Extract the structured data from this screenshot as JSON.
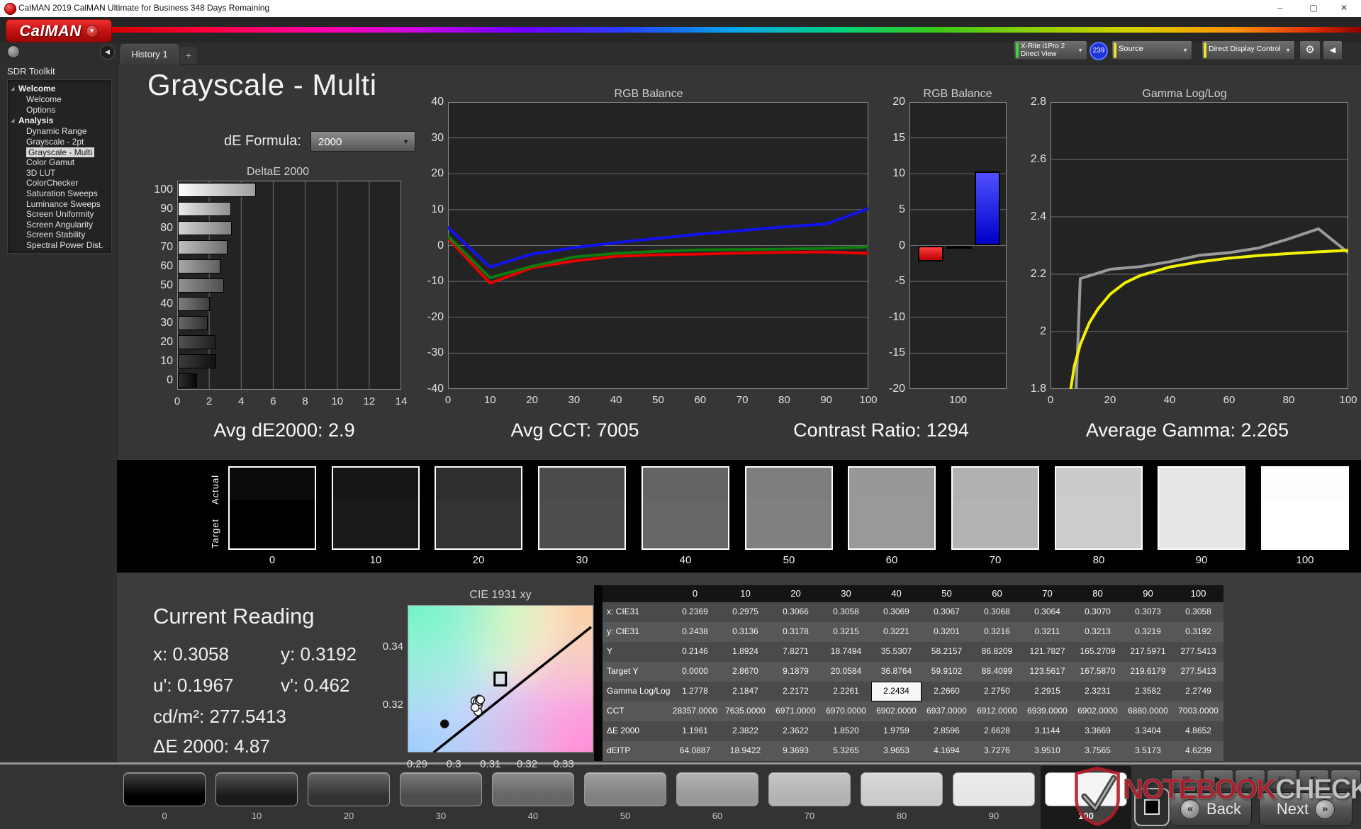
{
  "window": {
    "title": "CalMAN 2019 CalMAN Ultimate for Business 348 Days Remaining",
    "logo_text": "CalMAN",
    "tab": "History 1",
    "new_tab": "+"
  },
  "icons": {
    "chevron_down": "▼",
    "gear": "⚙",
    "collapse_left": "◀",
    "expander": "◢",
    "minimize": "–",
    "maximize": "▢",
    "close": "✕",
    "back_chevrons": "«",
    "next_chevrons": "»",
    "mini": [
      "▣",
      "▶",
      "■",
      "▤",
      "◧",
      "≡"
    ]
  },
  "toolbar": {
    "meter": {
      "line1": "X-Rite i1Pro 2",
      "line2": "Direct View",
      "badge": "239",
      "accent": "#3fd435"
    },
    "source": {
      "label": "Source",
      "accent": "#e8e431"
    },
    "display": {
      "label": "Direct Display Control",
      "accent": "#e8e431"
    }
  },
  "sidebar": {
    "title": "SDR Toolkit",
    "selected": "Grayscale - Multi",
    "sections": [
      {
        "label": "Welcome",
        "items": [
          "Welcome",
          "Options"
        ]
      },
      {
        "label": "Analysis",
        "items": [
          "Dynamic Range",
          "Grayscale - 2pt",
          "Grayscale - Multi",
          "Color Gamut",
          "3D LUT",
          "ColorChecker",
          "Saturation Sweeps",
          "Luminance Sweeps",
          "Screen Uniformity",
          "Screen Angularity",
          "Screen Stability",
          "Spectral Power Dist."
        ]
      }
    ]
  },
  "page": {
    "title": "Grayscale - Multi",
    "de_formula_label": "dE Formula:",
    "de_formula_value": "2000"
  },
  "stats": [
    "Avg dE2000: 2.9",
    "Avg CCT: 7005",
    "Contrast Ratio: 1294",
    "Average Gamma: 2.265"
  ],
  "chart_data": [
    {
      "type": "bar",
      "title": "DeltaE 2000",
      "orientation": "horizontal",
      "categories": [
        "100",
        "90",
        "80",
        "70",
        "60",
        "50",
        "40",
        "30",
        "20",
        "10",
        "0"
      ],
      "values": [
        4.8652,
        3.3404,
        3.3669,
        3.1144,
        2.6628,
        2.8596,
        1.9759,
        1.852,
        2.3622,
        2.3822,
        1.1961
      ],
      "bar_hex": [
        "#ffffff",
        "#e6e6e6",
        "#cccccc",
        "#b3b3b3",
        "#999999",
        "#808080",
        "#666666",
        "#4d4d4d",
        "#333333",
        "#1a1a1a",
        "#0a0a0a"
      ],
      "xlim": [
        0,
        14
      ],
      "xticks": [
        "0",
        "2",
        "4",
        "6",
        "8",
        "10",
        "12",
        "14"
      ],
      "grid": true
    },
    {
      "type": "line",
      "title": "RGB Balance",
      "x": [
        0,
        10,
        20,
        30,
        40,
        50,
        60,
        70,
        80,
        90,
        100
      ],
      "xticks": [
        "0",
        "10",
        "20",
        "30",
        "40",
        "50",
        "60",
        "70",
        "80",
        "90",
        "100"
      ],
      "ylim": [
        -40,
        40
      ],
      "yticks": [
        "40",
        "30",
        "20",
        "10",
        "0",
        "-10",
        "-20",
        "-30",
        "-40"
      ],
      "series": [
        {
          "name": "Red",
          "color": "#e80000",
          "values": [
            2.0,
            -10.5,
            -6.2,
            -4.3,
            -3.0,
            -2.6,
            -2.4,
            -2.1,
            -1.9,
            -1.8,
            -2.2
          ]
        },
        {
          "name": "Green",
          "color": "#0e7c0e",
          "values": [
            2.6,
            -9.0,
            -5.8,
            -3.2,
            -2.2,
            -1.6,
            -1.2,
            -1.1,
            -1.0,
            -0.8,
            -0.4
          ]
        },
        {
          "name": "Blue",
          "color": "#1212ee",
          "values": [
            5.0,
            -6.0,
            -2.4,
            -0.6,
            0.8,
            2.0,
            3.2,
            4.2,
            5.2,
            6.0,
            10.3
          ]
        }
      ],
      "grid": true
    },
    {
      "type": "bar",
      "title": "RGB Balance",
      "categories": [
        "100"
      ],
      "ylim": [
        -20,
        20
      ],
      "yticks": [
        "20",
        "15",
        "10",
        "5",
        "0",
        "-5",
        "-10",
        "-15",
        "-20"
      ],
      "series": [
        {
          "name": "Red",
          "color_top": "#ff4040",
          "color_bottom": "#b80000",
          "value": -2.2
        },
        {
          "name": "Green",
          "color_top": "#18a018",
          "color_bottom": "#0a680a",
          "value": -0.4
        },
        {
          "name": "Blue",
          "color_top": "#5050ff",
          "color_bottom": "#0000c8",
          "value": 10.3
        }
      ],
      "grid": true
    },
    {
      "type": "line",
      "title": "Gamma Log/Log",
      "ylim": [
        1.8,
        2.8
      ],
      "yticks": [
        "2.8",
        "2.6",
        "2.4",
        "2.2",
        "2",
        "1.8"
      ],
      "xticks": [
        "0",
        "20",
        "40",
        "60",
        "80",
        "100"
      ],
      "xlim": [
        0,
        100
      ],
      "series": [
        {
          "name": "Measured Gamma",
          "color": "#9a9a9a",
          "x": [
            8.6,
            10,
            20,
            30,
            40,
            50,
            60,
            70,
            80,
            90,
            100
          ],
          "values": [
            1.8,
            2.1847,
            2.2172,
            2.2261,
            2.2434,
            2.266,
            2.275,
            2.2915,
            2.3231,
            2.3582,
            2.2749
          ]
        },
        {
          "name": "Target Gamma",
          "color": "#f2f200",
          "x": [
            6.8,
            8,
            10,
            13,
            16,
            20,
            25,
            30,
            40,
            50,
            60,
            70,
            80,
            90,
            100
          ],
          "values": [
            1.8,
            1.88,
            1.955,
            2.03,
            2.08,
            2.13,
            2.17,
            2.195,
            2.225,
            2.243,
            2.256,
            2.265,
            2.272,
            2.278,
            2.283
          ]
        }
      ],
      "grid": true
    },
    {
      "type": "scatter",
      "title": "CIE 1931 xy",
      "xlim": [
        0.2874,
        0.3381
      ],
      "ylim": [
        0.3038,
        0.3543
      ],
      "xticks": [
        "0.29",
        "0.3",
        "0.31",
        "0.32",
        "0.33"
      ],
      "xtick_vals": [
        0.29,
        0.3,
        0.31,
        0.32,
        0.33
      ],
      "yticks": [
        "0.34",
        "0.32"
      ],
      "ytick_vals": [
        0.34,
        0.32
      ],
      "target": {
        "x": 0.3127,
        "y": 0.329
      },
      "locus": [
        [
          0.2945,
          0.3038
        ],
        [
          0.3375,
          0.3468
        ]
      ],
      "points": [
        {
          "x": 0.2975,
          "y": 0.3136,
          "fill": "dark"
        },
        {
          "x": 0.3066,
          "y": 0.3178,
          "fill": "light"
        },
        {
          "x": 0.3058,
          "y": 0.3215,
          "fill": "light"
        },
        {
          "x": 0.3069,
          "y": 0.3221,
          "fill": "light"
        },
        {
          "x": 0.3067,
          "y": 0.3201,
          "fill": "light"
        },
        {
          "x": 0.3068,
          "y": 0.3216,
          "fill": "light"
        },
        {
          "x": 0.3064,
          "y": 0.3211,
          "fill": "light"
        },
        {
          "x": 0.307,
          "y": 0.3213,
          "fill": "light"
        },
        {
          "x": 0.3073,
          "y": 0.3219,
          "fill": "light"
        },
        {
          "x": 0.3058,
          "y": 0.3192,
          "fill": "light"
        }
      ]
    }
  ],
  "swatch_row": {
    "actual_label": "Actual",
    "target_label": "Target",
    "levels": [
      "0",
      "10",
      "20",
      "30",
      "40",
      "50",
      "60",
      "70",
      "80",
      "90",
      "100"
    ],
    "actual_hex": [
      "#0b0b0b",
      "#161616",
      "#2f2f2f",
      "#4b4b4b",
      "#646464",
      "#7e7e7e",
      "#989898",
      "#b1b1b1",
      "#cbcbcb",
      "#e5e5e5",
      "#fdfdfd"
    ],
    "target_hex": [
      "#000000",
      "#1a1a1a",
      "#333333",
      "#4d4d4d",
      "#666666",
      "#808080",
      "#999999",
      "#b3b3b3",
      "#cccccc",
      "#e6e6e6",
      "#ffffff"
    ]
  },
  "current_reading": {
    "title": "Current Reading",
    "rows": [
      [
        "x: 0.3058",
        "y: 0.3192"
      ],
      [
        "u': 0.1967",
        "v': 0.462"
      ],
      [
        "cd/m²: 277.5413"
      ],
      [
        "ΔE 2000: 4.87"
      ]
    ]
  },
  "table": {
    "columns": [
      "0",
      "10",
      "20",
      "30",
      "40",
      "50",
      "60",
      "70",
      "80",
      "90",
      "100"
    ],
    "rows": [
      {
        "label": "x: CIE31",
        "values": [
          "0.2369",
          "0.2975",
          "0.3066",
          "0.3058",
          "0.3069",
          "0.3067",
          "0.3068",
          "0.3064",
          "0.3070",
          "0.3073",
          "0.3058"
        ]
      },
      {
        "label": "y: CIE31",
        "values": [
          "0.2438",
          "0.3136",
          "0.3178",
          "0.3215",
          "0.3221",
          "0.3201",
          "0.3216",
          "0.3211",
          "0.3213",
          "0.3219",
          "0.3192"
        ]
      },
      {
        "label": "Y",
        "values": [
          "0.2146",
          "1.8924",
          "7.8271",
          "18.7494",
          "35.5307",
          "58.2157",
          "86.8209",
          "121.7827",
          "165.2709",
          "217.5971",
          "277.5413"
        ]
      },
      {
        "label": "Target Y",
        "values": [
          "0.0000",
          "2.8670",
          "9.1879",
          "20.0584",
          "36.8764",
          "59.9102",
          "88.4099",
          "123.5617",
          "167.5870",
          "219.6179",
          "277.5413"
        ]
      },
      {
        "label": "Gamma Log/Log",
        "values": [
          "1.2778",
          "2.1847",
          "2.2172",
          "2.2261",
          "2.2434",
          "2.2660",
          "2.2750",
          "2.2915",
          "2.3231",
          "2.3582",
          "2.2749"
        ],
        "highlight": 4
      },
      {
        "label": "CCT",
        "values": [
          "28357.0000",
          "7635.0000",
          "6971.0000",
          "6970.0000",
          "6902.0000",
          "6937.0000",
          "6912.0000",
          "6939.0000",
          "6902.0000",
          "6880.0000",
          "7003.0000"
        ]
      },
      {
        "label": "ΔE 2000",
        "values": [
          "1.1961",
          "2.3822",
          "2.3622",
          "1.8520",
          "1.9759",
          "2.8596",
          "2.6628",
          "3.1144",
          "3.3669",
          "3.3404",
          "4.8652"
        ]
      },
      {
        "label": "dEITP",
        "values": [
          "64.0887",
          "18.9422",
          "9.3693",
          "5.3265",
          "3.9653",
          "4.1694",
          "3.7276",
          "3.9510",
          "3.7565",
          "3.5173",
          "4.6239"
        ]
      }
    ]
  },
  "bottom_bar": {
    "levels": [
      "0",
      "10",
      "20",
      "30",
      "40",
      "50",
      "60",
      "70",
      "80",
      "90",
      "100"
    ],
    "level_hex": [
      "#000000",
      "#1a1a1a",
      "#333333",
      "#4d4d4d",
      "#666666",
      "#808080",
      "#999999",
      "#b3b3b3",
      "#cccccc",
      "#e6e6e6",
      "#ffffff"
    ],
    "selected": "100",
    "back_label": "Back",
    "next_label": "Next"
  },
  "watermark": {
    "part1": "NOTEBOOK",
    "part2": "CHECK"
  }
}
